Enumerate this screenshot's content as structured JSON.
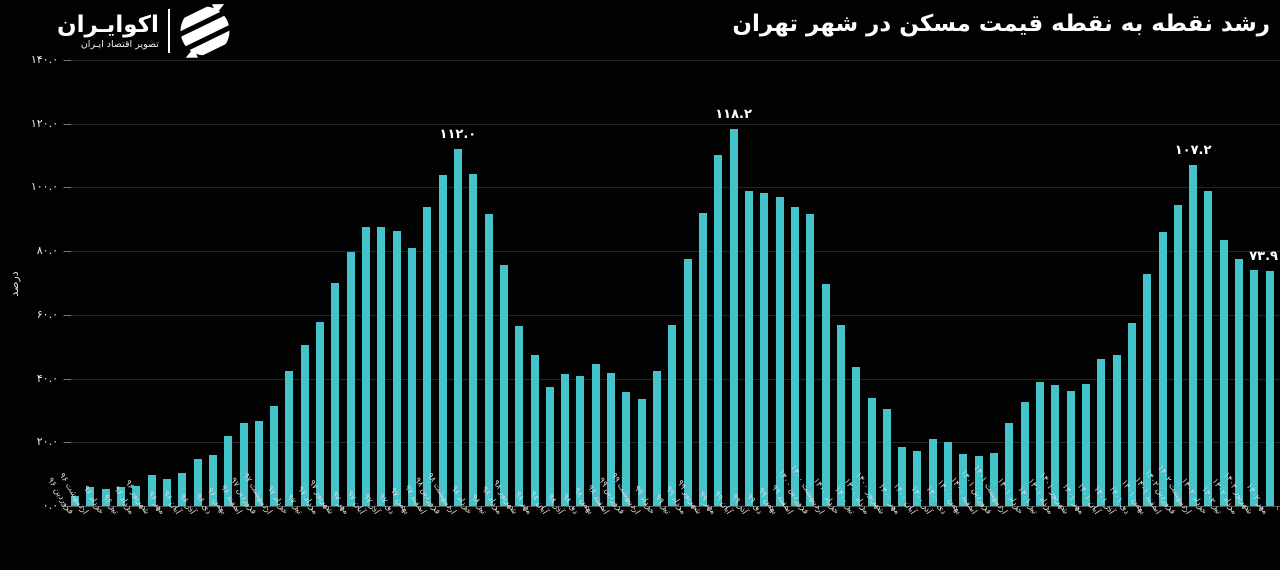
{
  "header": {
    "title": "رشد نقطه به نقطه قیمت مسکن در شهر تهران",
    "logo": {
      "name": "اکوایـران",
      "tagline": "تصویر اقتصاد ایـران"
    }
  },
  "chart_data": {
    "type": "bar",
    "title": "رشد نقطه به نقطه قیمت مسکن در شهر تهران",
    "xlabel": "",
    "ylabel": "درصد",
    "ylim": [
      0,
      140
    ],
    "grid": true,
    "bar_color": "#44c4ca",
    "background_color": "#020202",
    "yticks": {
      "values": [
        0,
        20,
        40,
        60,
        80,
        100,
        120,
        140
      ],
      "labels": [
        "۰.۰",
        "۲۰.۰",
        "۴۰.۰",
        "۶۰.۰",
        "۸۰.۰",
        "۱۰۰.۰",
        "۱۲۰.۰",
        "۱۴۰.۰"
      ]
    },
    "categories": [
      "فروردین ۹۶",
      "اردیبهشت ۹۶",
      "خرداد ۹۶",
      "تیر ۹۶",
      "مرداد ۹۶",
      "شهریور ۹۶",
      "مهر ۹۶",
      "آبان ۹۶",
      "آذر ۹۶",
      "دی ۹۶",
      "بهمن ۹۶",
      "اسفند ۹۶",
      "فروردین ۹۷",
      "اردیبهشت ۹۷",
      "خرداد ۹۷",
      "تیر ۹۷",
      "مرداد ۹۷",
      "شهریور ۹۷",
      "مهر ۹۷",
      "آبان ۹۷",
      "آذر ۹۷",
      "دی ۹۷",
      "بهمن ۹۷",
      "اسفند ۹۷",
      "فروردین ۹۸",
      "اردیبهشت ۹۸",
      "خرداد ۹۸",
      "تیر ۹۸",
      "مرداد ۹۸",
      "شهریور ۹۸",
      "مهر ۹۸",
      "آبان ۹۸",
      "آذر ۹۸",
      "دی ۹۸",
      "بهمن ۹۸",
      "اسفند ۹۸",
      "فروردین ۹۹",
      "اردیبهشت ۹۹",
      "خرداد ۹۹",
      "تیر ۹۹",
      "مرداد ۹۹",
      "شهریور ۹۹",
      "مهر ۹۹",
      "آبان ۹۹",
      "آذر ۹۹",
      "دی ۹۹",
      "بهمن ۹۹",
      "اسفند ۹۹",
      "فروردین ۱۴۰۰",
      "اردیبهشت ۱۴۰۰",
      "خرداد ۱۴۰۰",
      "تیر ۱۴۰۰",
      "مرداد ۱۴۰۰",
      "شهریور ۱۴۰۰",
      "مهر ۱۴۰۰",
      "آبان ۱۴۰۰",
      "آذر ۱۴۰۰",
      "دی ۱۴۰۰",
      "بهمن ۱۴۰۰",
      "اسفند ۱۴۰۰",
      "فروردین ۱۴۰۱",
      "اردیبهشت ۱۴۰۱",
      "خرداد ۱۴۰۱",
      "تیر ۱۴۰۱",
      "مرداد ۱۴۰۱",
      "شهریور ۱۴۰۱",
      "مهر ۱۴۰۱",
      "آبان ۱۴۰۱",
      "آذر ۱۴۰۱",
      "دی ۱۴۰۱",
      "بهمن ۱۴۰۱",
      "اسفند ۱۴۰۱",
      "فروردین ۱۴۰۲",
      "اردیبهشت ۱۴۰۲",
      "خرداد ۱۴۰۲",
      "تیر ۱۴۰۲",
      "مرداد ۱۴۰۲",
      "شهریور ۱۴۰۲",
      "مهر ۱۴۰۲"
    ],
    "values": [
      3.1,
      5.9,
      5.3,
      6.1,
      6.3,
      9.8,
      8.4,
      10.5,
      14.7,
      16.1,
      22.0,
      26.2,
      26.6,
      31.4,
      42.4,
      50.4,
      57.9,
      70.0,
      79.6,
      87.7,
      87.7,
      86.4,
      80.9,
      94.0,
      103.9,
      112.0,
      104.2,
      91.6,
      75.7,
      56.4,
      47.5,
      37.5,
      41.5,
      40.9,
      44.6,
      41.8,
      35.7,
      33.6,
      42.5,
      56.8,
      77.5,
      92.1,
      110.1,
      118.2,
      98.9,
      98.2,
      97.1,
      93.9,
      91.8,
      69.6,
      56.8,
      43.5,
      33.8,
      30.5,
      18.5,
      17.4,
      21.1,
      20.0,
      16.2,
      15.7,
      16.6,
      26.1,
      32.8,
      38.8,
      38.0,
      36.2,
      38.3,
      46.2,
      47.4,
      57.6,
      72.8,
      86.1,
      94.4,
      107.2,
      98.9,
      83.4,
      77.5,
      74.1,
      73.9
    ],
    "annotations": [
      {
        "bar_index": 25,
        "label": "۱۱۲.۰",
        "value": 112.0
      },
      {
        "bar_index": 43,
        "label": "۱۱۸.۲",
        "value": 118.2
      },
      {
        "bar_index": 73,
        "label": "۱۰۷.۲",
        "value": 107.2
      },
      {
        "bar_index": 78,
        "label": "۷۳.۹",
        "value": 73.9
      }
    ]
  }
}
